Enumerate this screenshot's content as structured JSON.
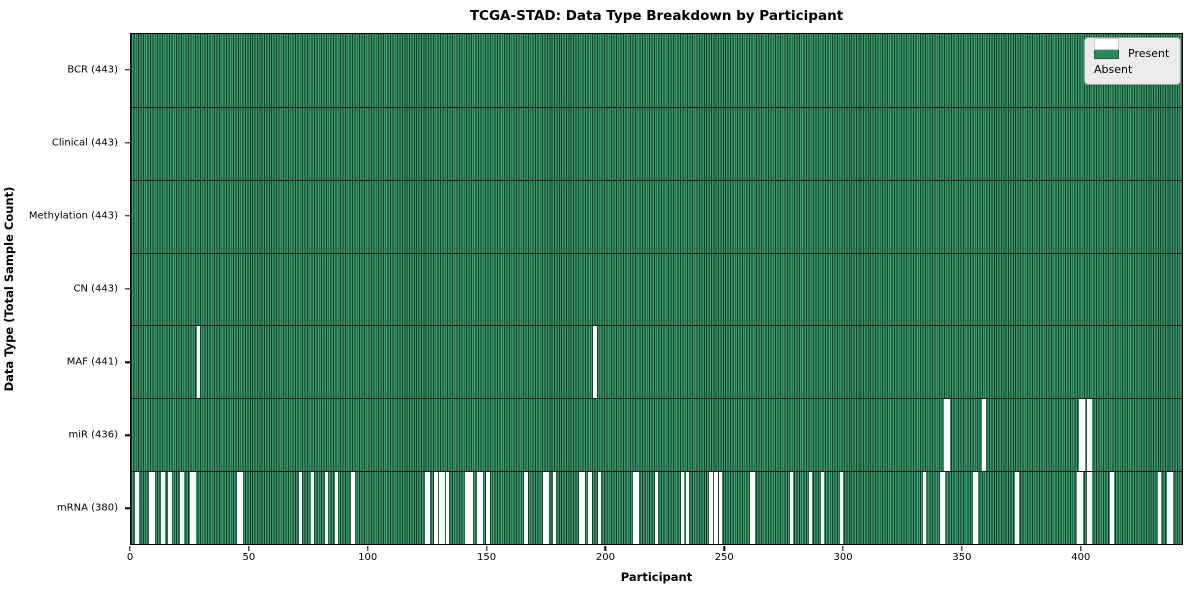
{
  "colors": {
    "present": "#2e8b57",
    "present_light": "#38976b",
    "bar_edge": "#143d27",
    "absent": "#ffffff",
    "legend_bg": "#ebebeb"
  },
  "chart_data": {
    "type": "heatmap",
    "title": "TCGA-STAD: Data Type Breakdown by Participant",
    "xlabel": "Participant",
    "ylabel": "Data Type (Total Sample Count)",
    "xlim": [
      0,
      443
    ],
    "n_participants": 443,
    "x_ticks": [
      0,
      50,
      100,
      150,
      200,
      250,
      300,
      350,
      400
    ],
    "grid": false,
    "legend_position": "upper right",
    "legend": {
      "present_label": "Present",
      "absent_label": "Absent"
    },
    "rows": [
      {
        "data_type": "BCR",
        "label": "BCR (443)",
        "present_count": 443,
        "absent_participants": []
      },
      {
        "data_type": "Clinical",
        "label": "Clinical (443)",
        "present_count": 443,
        "absent_participants": []
      },
      {
        "data_type": "Methylation",
        "label": "Methylation (443)",
        "present_count": 443,
        "absent_participants": []
      },
      {
        "data_type": "CN",
        "label": "CN (443)",
        "present_count": 443,
        "absent_participants": []
      },
      {
        "data_type": "MAF",
        "label": "MAF (441)",
        "present_count": 441,
        "absent_participants": [
          28,
          195
        ]
      },
      {
        "data_type": "miR",
        "label": "miR (436)",
        "present_count": 436,
        "absent_participants": [
          343,
          344,
          359,
          400,
          401,
          403,
          404
        ]
      },
      {
        "data_type": "mRNA",
        "label": "mRNA (380)",
        "present_count": 380,
        "absent_participants": [
          2,
          8,
          9,
          13,
          16,
          21,
          25,
          26,
          45,
          46,
          71,
          76,
          82,
          86,
          93,
          124,
          125,
          128,
          130,
          131,
          133,
          141,
          142,
          143,
          146,
          147,
          150,
          166,
          174,
          175,
          178,
          189,
          190,
          193,
          197,
          212,
          213,
          221,
          232,
          234,
          244,
          246,
          248,
          261,
          262,
          278,
          286,
          291,
          299,
          334,
          341,
          342,
          355,
          356,
          373,
          399,
          400,
          403,
          404,
          413,
          433,
          437,
          438
        ]
      }
    ]
  }
}
